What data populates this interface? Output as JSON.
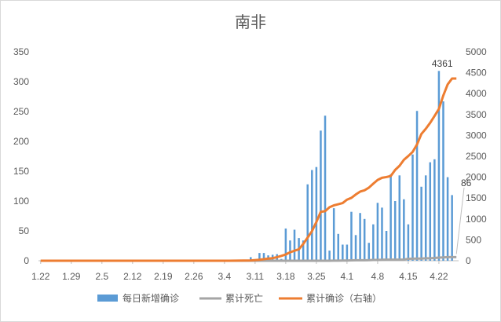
{
  "chart_data": {
    "type": "bar",
    "title": "南非",
    "x_ticks": [
      "1.22",
      "1.29",
      "2.5",
      "2.12",
      "2.19",
      "2.26",
      "3.4",
      "3.11",
      "3.18",
      "3.25",
      "4.1",
      "4.8",
      "4.15",
      "4.22"
    ],
    "y_left": {
      "ticks": [
        0,
        50,
        100,
        150,
        200,
        250,
        300,
        350
      ],
      "lim": [
        0,
        350
      ]
    },
    "y_right": {
      "ticks": [
        0,
        500,
        1000,
        1500,
        2000,
        2500,
        3000,
        3500,
        4000,
        4500,
        5000
      ],
      "lim": [
        0,
        5000
      ]
    },
    "grid": false,
    "legend_position": "bottom",
    "colors": {
      "bars": "#5b9bd5",
      "deaths": "#a5a5a5",
      "cases": "#ed7d31",
      "axis": "#bfbfbf",
      "text": "#595959"
    },
    "annotations": [
      {
        "text": "4361",
        "series": "cases"
      },
      {
        "text": "86",
        "series": "deaths"
      }
    ],
    "series": [
      {
        "name": "每日新增确诊",
        "type": "bar",
        "axis": "left",
        "x": [
          "3.10",
          "3.12",
          "3.13",
          "3.14",
          "3.15",
          "3.16",
          "3.17",
          "3.18",
          "3.19",
          "3.20",
          "3.21",
          "3.22",
          "3.23",
          "3.24",
          "3.25",
          "3.26",
          "3.27",
          "3.28",
          "3.29",
          "3.30",
          "3.31",
          "4.1",
          "4.2",
          "4.3",
          "4.4",
          "4.5",
          "4.6",
          "4.7",
          "4.8",
          "4.9",
          "4.10",
          "4.11",
          "4.12",
          "4.13",
          "4.14",
          "4.15",
          "4.16",
          "4.17",
          "4.18",
          "4.19",
          "4.20",
          "4.21",
          "4.22",
          "4.23",
          "4.24",
          "4.25",
          "4.26"
        ],
        "values": [
          6,
          13,
          13,
          9,
          10,
          11,
          3,
          54,
          34,
          52,
          38,
          34,
          128,
          152,
          157,
          218,
          243,
          17,
          88,
          45,
          27,
          27,
          82,
          43,
          80,
          70,
          30,
          61,
          97,
          89,
          50,
          145,
          100,
          143,
          103,
          61,
          178,
          251,
          124,
          143,
          165,
          170,
          318,
          267,
          140,
          110,
          0
        ]
      },
      {
        "name": "累计死亡",
        "type": "line",
        "axis": "right",
        "x": [
          "3.26",
          "3.27",
          "3.28",
          "3.29",
          "3.30",
          "3.31",
          "4.1",
          "4.2",
          "4.3",
          "4.4",
          "4.5",
          "4.6",
          "4.7",
          "4.8",
          "4.9",
          "4.10",
          "4.11",
          "4.12",
          "4.13",
          "4.14",
          "4.15",
          "4.16",
          "4.17",
          "4.18",
          "4.19",
          "4.20",
          "4.21",
          "4.22",
          "4.23",
          "4.24",
          "4.25",
          "4.26"
        ],
        "values": [
          0,
          1,
          1,
          2,
          3,
          5,
          5,
          9,
          11,
          11,
          12,
          13,
          18,
          18,
          24,
          25,
          25,
          25,
          27,
          27,
          48,
          50,
          52,
          52,
          58,
          58,
          65,
          75,
          79,
          86,
          86,
          86
        ]
      },
      {
        "name": "累计确诊（右轴）",
        "type": "line",
        "axis": "right",
        "x": [
          "3.5",
          "3.10",
          "3.12",
          "3.13",
          "3.14",
          "3.15",
          "3.16",
          "3.17",
          "3.18",
          "3.19",
          "3.20",
          "3.21",
          "3.22",
          "3.23",
          "3.24",
          "3.25",
          "3.26",
          "3.27",
          "3.28",
          "3.29",
          "3.30",
          "3.31",
          "4.1",
          "4.2",
          "4.3",
          "4.4",
          "4.5",
          "4.6",
          "4.7",
          "4.8",
          "4.9",
          "4.10",
          "4.11",
          "4.12",
          "4.13",
          "4.14",
          "4.15",
          "4.16",
          "4.17",
          "4.18",
          "4.19",
          "4.20",
          "4.21",
          "4.22",
          "4.23",
          "4.24",
          "4.25",
          "4.26"
        ],
        "values": [
          1,
          7,
          24,
          38,
          51,
          62,
          85,
          116,
          150,
          202,
          240,
          274,
          402,
          554,
          709,
          927,
          1170,
          1187,
          1280,
          1326,
          1353,
          1380,
          1462,
          1505,
          1585,
          1655,
          1686,
          1749,
          1845,
          1934,
          1985,
          2003,
          2028,
          2173,
          2272,
          2415,
          2506,
          2605,
          2783,
          3034,
          3158,
          3300,
          3465,
          3635,
          3953,
          4220,
          4361,
          4361
        ]
      }
    ]
  }
}
